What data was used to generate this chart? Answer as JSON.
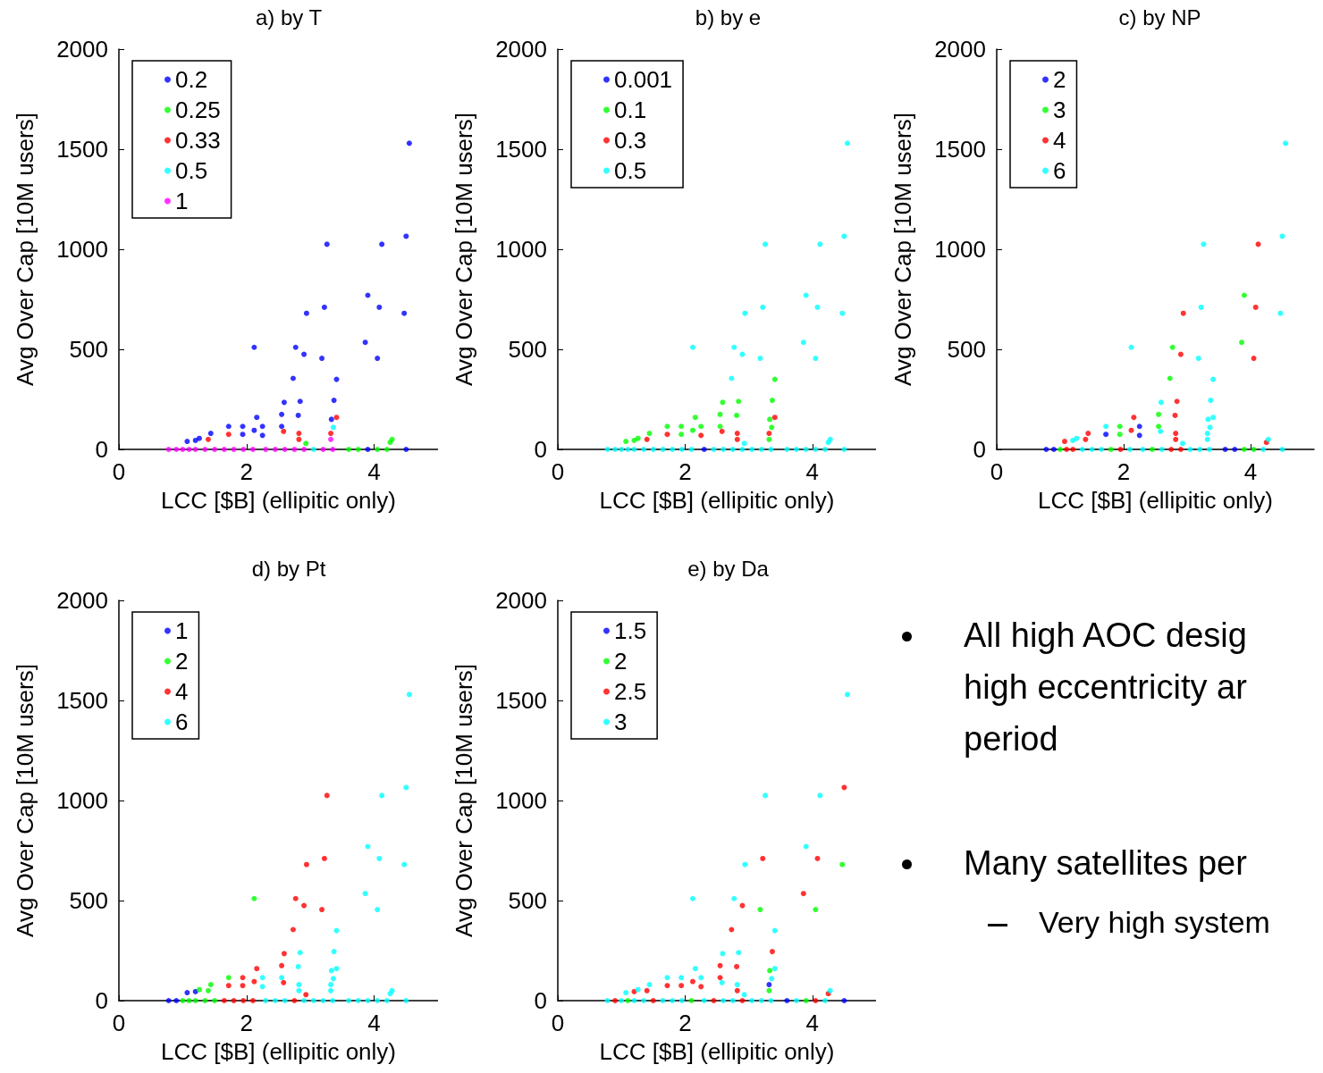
{
  "chart_data": [
    {
      "type": "scatter",
      "title": "a) by T",
      "xlabel": "LCC [$B] (ellipitic only)",
      "ylabel": "Avg Over Cap [10M users]",
      "xlim": [
        0,
        5
      ],
      "ylim": [
        0,
        2000
      ],
      "xticks": [
        0,
        2,
        4
      ],
      "yticks": [
        0,
        500,
        1000,
        1500,
        2000
      ],
      "legend": "top left",
      "marker": "circle",
      "series": [
        {
          "name": "0.2",
          "color": "#0000ff",
          "x": [
            4.55,
            4.5,
            3.26,
            4.12,
            3.9,
            3.22,
            4.08,
            2.94,
            4.47,
            2.12,
            2.77,
            3.86,
            2.9,
            3.18,
            4.05,
            2.73,
            3.41,
            2.59,
            2.84,
            3.37,
            2.55,
            2.81,
            2.16,
            3.33,
            1.07,
            1.2,
            1.26,
            1.44,
            1.72,
            1.94,
            1.94,
            2.12,
            2.25,
            2.25,
            2.55,
            3.9,
            4.5
          ],
          "values": [
            1530,
            1065,
            1025,
            1025,
            770,
            710,
            710,
            680,
            680,
            510,
            510,
            535,
            475,
            455,
            455,
            355,
            350,
            235,
            240,
            245,
            175,
            170,
            160,
            150,
            40,
            45,
            55,
            80,
            115,
            115,
            75,
            95,
            115,
            70,
            115,
            0,
            0
          ]
        },
        {
          "name": "0.25",
          "color": "#00ff00",
          "x": [
            4.28,
            4.25,
            2.93,
            3.6,
            3.75,
            4.05,
            4.2
          ],
          "values": [
            50,
            35,
            30,
            0,
            0,
            0,
            0
          ]
        },
        {
          "name": "0.33",
          "color": "#ff0000",
          "x": [
            3.41,
            1.4,
            1.72,
            2.58,
            2.82,
            2.82,
            3.32
          ],
          "values": [
            160,
            50,
            75,
            90,
            80,
            50,
            80
          ]
        },
        {
          "name": "0.5",
          "color": "#00ffff",
          "x": [
            3.36,
            3.05
          ],
          "values": [
            110,
            0
          ]
        },
        {
          "name": "1",
          "color": "#ff00ff",
          "x": [
            3.32,
            0.78,
            0.9,
            1.0,
            1.1,
            1.2,
            1.35,
            1.5,
            1.65,
            1.8,
            1.95,
            2.1,
            2.3,
            2.45,
            2.6,
            2.75,
            2.9,
            3.2,
            3.35
          ],
          "values": [
            50,
            0,
            0,
            0,
            0,
            0,
            0,
            0,
            0,
            0,
            0,
            0,
            0,
            0,
            0,
            0,
            0,
            0,
            0
          ]
        }
      ]
    },
    {
      "type": "scatter",
      "title": "b) by e",
      "xlabel": "LCC [$B] (ellipitic only)",
      "ylabel": "Avg Over Cap [10M users]",
      "xlim": [
        0,
        5
      ],
      "ylim": [
        0,
        2000
      ],
      "xticks": [
        0,
        2,
        4
      ],
      "yticks": [
        0,
        500,
        1000,
        1500,
        2000
      ],
      "legend": "top left",
      "marker": "circle",
      "series": [
        {
          "name": "0.001",
          "color": "#0000ff",
          "x": [
            2.3
          ],
          "values": [
            0
          ]
        },
        {
          "name": "0.1",
          "color": "#00ff00",
          "x": [
            3.41,
            2.59,
            2.84,
            3.37,
            2.55,
            2.81,
            2.16,
            3.33,
            1.07,
            1.2,
            1.26,
            1.44,
            1.72,
            1.94,
            1.94,
            2.12,
            2.25,
            2.55,
            3.36,
            3.32
          ],
          "values": [
            350,
            235,
            240,
            245,
            175,
            170,
            160,
            150,
            40,
            45,
            55,
            80,
            115,
            115,
            75,
            95,
            115,
            115,
            110,
            50
          ]
        },
        {
          "name": "0.3",
          "color": "#ff0000",
          "x": [
            3.41,
            1.4,
            1.72,
            2.25,
            2.58,
            2.82,
            2.82,
            3.32
          ],
          "values": [
            160,
            50,
            75,
            70,
            90,
            80,
            50,
            80
          ]
        },
        {
          "name": "0.5",
          "color": "#00ffff",
          "x": [
            4.55,
            4.5,
            3.26,
            4.12,
            3.9,
            3.22,
            4.08,
            2.94,
            4.47,
            2.12,
            2.77,
            3.86,
            2.9,
            3.18,
            4.05,
            2.73,
            4.28,
            4.25,
            2.93,
            0.78,
            0.9,
            1.0,
            1.1,
            1.2,
            1.35,
            1.5,
            1.65,
            1.8,
            1.95,
            2.1,
            2.45,
            2.6,
            2.75,
            2.9,
            3.05,
            3.2,
            3.35,
            3.6,
            3.75,
            3.9,
            4.05,
            4.2,
            4.5
          ],
          "values": [
            1530,
            1065,
            1025,
            1025,
            770,
            710,
            710,
            680,
            680,
            510,
            510,
            535,
            475,
            455,
            455,
            355,
            50,
            35,
            30,
            0,
            0,
            0,
            0,
            0,
            0,
            0,
            0,
            0,
            0,
            0,
            0,
            0,
            0,
            0,
            0,
            0,
            0,
            0,
            0,
            0,
            0,
            0,
            0
          ]
        }
      ]
    },
    {
      "type": "scatter",
      "title": "c) by NP",
      "xlabel": "LCC [$B] (ellipitic only)",
      "ylabel": "Avg Over Cap [10M users]",
      "xlim": [
        0,
        5
      ],
      "ylim": [
        0,
        2000
      ],
      "xticks": [
        0,
        2,
        4
      ],
      "yticks": [
        0,
        500,
        1000,
        1500,
        2000
      ],
      "legend": "top left",
      "marker": "circle",
      "series": [
        {
          "name": "2",
          "color": "#0000ff",
          "x": [
            1.72,
            2.25,
            2.25,
            0.78,
            0.9,
            3.6,
            3.75
          ],
          "values": [
            75,
            115,
            70,
            0,
            0,
            0,
            0
          ]
        },
        {
          "name": "3",
          "color": "#00ff00",
          "x": [
            3.9,
            2.77,
            3.86,
            2.73,
            2.55,
            1.94,
            1.94,
            2.55,
            1.0,
            1.8,
            2.45,
            3.9,
            4.05
          ],
          "values": [
            770,
            510,
            535,
            355,
            175,
            115,
            75,
            115,
            0,
            0,
            0,
            0,
            0
          ]
        },
        {
          "name": "4",
          "color": "#ff0000",
          "x": [
            4.12,
            4.08,
            2.94,
            2.9,
            4.05,
            2.84,
            2.81,
            2.16,
            1.07,
            1.44,
            1.4,
            2.12,
            2.82,
            2.82,
            4.25,
            1.1,
            1.2,
            1.95,
            2.75,
            2.9
          ],
          "values": [
            1025,
            710,
            680,
            475,
            455,
            240,
            170,
            160,
            40,
            80,
            50,
            95,
            80,
            50,
            35,
            0,
            0,
            0,
            0,
            0
          ]
        },
        {
          "name": "6",
          "color": "#00ffff",
          "x": [
            4.55,
            4.5,
            3.26,
            3.22,
            4.47,
            2.12,
            3.18,
            3.41,
            2.59,
            3.37,
            3.41,
            3.33,
            1.2,
            1.26,
            1.72,
            2.58,
            3.36,
            3.32,
            3.32,
            4.28,
            2.93,
            1.35,
            1.5,
            1.65,
            2.1,
            2.3,
            2.6,
            3.05,
            3.2,
            3.35,
            4.2,
            4.5
          ],
          "values": [
            1530,
            1065,
            1025,
            710,
            680,
            510,
            455,
            350,
            235,
            245,
            160,
            150,
            45,
            55,
            115,
            90,
            110,
            80,
            50,
            50,
            30,
            0,
            0,
            0,
            0,
            0,
            0,
            0,
            0,
            0,
            0,
            0
          ]
        }
      ]
    },
    {
      "type": "scatter",
      "title": "d) by Pt",
      "xlabel": "LCC [$B] (ellipitic only)",
      "ylabel": "Avg Over Cap [10M users]",
      "xlim": [
        0,
        5
      ],
      "ylim": [
        0,
        2000
      ],
      "xticks": [
        0,
        2,
        4
      ],
      "yticks": [
        0,
        500,
        1000,
        1500,
        2000
      ],
      "legend": "top left",
      "marker": "circle",
      "series": [
        {
          "name": "1",
          "color": "#0000ff",
          "x": [
            1.07,
            1.2,
            0.78,
            0.9
          ],
          "values": [
            40,
            45,
            0,
            0
          ]
        },
        {
          "name": "2",
          "color": "#00ff00",
          "x": [
            2.12,
            1.26,
            1.44,
            1.4,
            1.72,
            1.0,
            1.1,
            1.2,
            1.35,
            1.5
          ],
          "values": [
            510,
            55,
            80,
            50,
            115,
            0,
            0,
            0,
            0,
            0
          ]
        },
        {
          "name": "4",
          "color": "#ff0000",
          "x": [
            3.26,
            3.22,
            2.94,
            2.77,
            2.9,
            3.18,
            2.73,
            2.59,
            2.55,
            2.16,
            1.72,
            1.94,
            1.94,
            2.12,
            2.58,
            2.93,
            1.65,
            1.8,
            1.95,
            2.1,
            2.75
          ],
          "values": [
            1025,
            710,
            680,
            510,
            475,
            455,
            355,
            235,
            175,
            160,
            75,
            115,
            75,
            95,
            90,
            30,
            0,
            0,
            0,
            0,
            0
          ]
        },
        {
          "name": "6",
          "color": "#00ffff",
          "x": [
            4.55,
            4.5,
            4.12,
            3.9,
            4.08,
            4.47,
            3.86,
            4.05,
            3.41,
            2.84,
            3.37,
            2.81,
            3.41,
            3.33,
            2.25,
            2.25,
            2.55,
            2.82,
            2.82,
            3.36,
            3.32,
            3.32,
            4.28,
            4.25,
            2.3,
            2.45,
            2.6,
            2.9,
            3.05,
            3.2,
            3.35,
            3.6,
            3.75,
            3.9,
            4.05,
            4.2,
            4.5
          ],
          "values": [
            1530,
            1065,
            1025,
            770,
            710,
            680,
            535,
            455,
            350,
            240,
            245,
            170,
            160,
            150,
            115,
            70,
            115,
            80,
            50,
            110,
            80,
            50,
            50,
            35,
            0,
            0,
            0,
            0,
            0,
            0,
            0,
            0,
            0,
            0,
            0,
            0,
            0
          ]
        }
      ]
    },
    {
      "type": "scatter",
      "title": "e) by Da",
      "xlabel": "LCC [$B] (ellipitic only)",
      "ylabel": "Avg Over Cap [10M users]",
      "xlim": [
        0,
        5
      ],
      "ylim": [
        0,
        2000
      ],
      "xticks": [
        0,
        2,
        4
      ],
      "yticks": [
        0,
        500,
        1000,
        1500,
        2000
      ],
      "legend": "top left",
      "marker": "circle",
      "series": [
        {
          "name": "1.5",
          "color": "#0000ff",
          "x": [
            3.32,
            3.6,
            4.5
          ],
          "values": [
            80,
            0,
            0
          ]
        },
        {
          "name": "2",
          "color": "#00ff00",
          "x": [
            4.47,
            3.18,
            4.05,
            3.33,
            3.32,
            1.1,
            2.1,
            3.9
          ],
          "values": [
            680,
            455,
            455,
            150,
            50,
            0,
            0,
            0
          ]
        },
        {
          "name": "2.5",
          "color": "#ff0000",
          "x": [
            4.5,
            3.22,
            4.08,
            3.86,
            2.9,
            2.73,
            3.37,
            2.55,
            2.81,
            1.2,
            1.4,
            1.72,
            1.94,
            2.12,
            2.25,
            2.55,
            2.82,
            4.25,
            0.9,
            1.5,
            2.45,
            2.9,
            4.05
          ],
          "values": [
            1065,
            710,
            710,
            535,
            475,
            355,
            245,
            175,
            170,
            45,
            50,
            75,
            75,
            95,
            70,
            115,
            50,
            35,
            0,
            0,
            0,
            0,
            0
          ]
        },
        {
          "name": "3",
          "color": "#00ffff",
          "x": [
            4.55,
            3.26,
            4.12,
            3.9,
            2.94,
            2.12,
            2.77,
            3.41,
            2.59,
            2.84,
            3.41,
            2.16,
            1.07,
            1.26,
            1.44,
            1.72,
            1.94,
            2.25,
            2.58,
            2.82,
            3.36,
            4.28,
            2.93,
            0.78,
            1.0,
            1.2,
            1.35,
            1.65,
            1.8,
            1.95,
            2.3,
            2.6,
            2.75,
            3.05,
            3.2,
            3.35,
            3.75,
            4.2
          ],
          "values": [
            1530,
            1025,
            1025,
            770,
            680,
            510,
            510,
            350,
            235,
            240,
            160,
            160,
            40,
            55,
            80,
            115,
            115,
            115,
            90,
            80,
            110,
            50,
            30,
            0,
            0,
            0,
            0,
            0,
            0,
            0,
            0,
            0,
            0,
            0,
            0,
            0,
            0,
            0
          ]
        }
      ]
    },
    {
      "type": "other",
      "annotations": [
        "All high AOC desig",
        "high eccentricity ar",
        "period",
        "Many satellites per",
        "Very high system"
      ]
    }
  ]
}
